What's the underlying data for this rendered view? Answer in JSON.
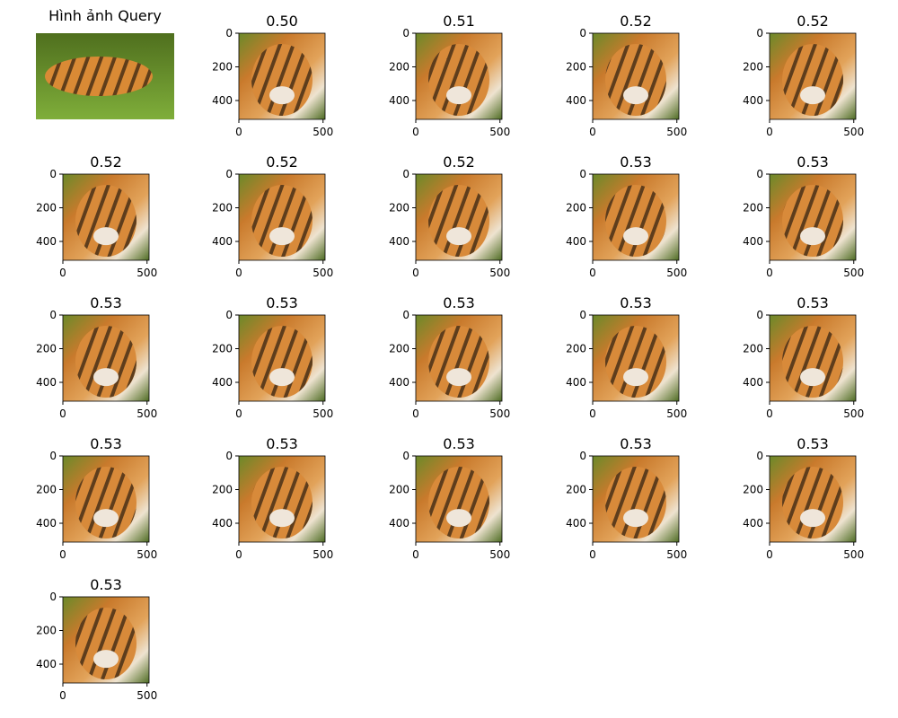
{
  "query": {
    "title": "Hình ảnh Query"
  },
  "axes": {
    "xlim": [
      0,
      512
    ],
    "ylim": [
      512,
      0
    ],
    "xticks": [
      0,
      500
    ],
    "yticks": [
      0,
      200,
      400
    ]
  },
  "results": [
    {
      "title": "0.50"
    },
    {
      "title": "0.51"
    },
    {
      "title": "0.52"
    },
    {
      "title": "0.52"
    },
    {
      "title": "0.52"
    },
    {
      "title": "0.52"
    },
    {
      "title": "0.52"
    },
    {
      "title": "0.53"
    },
    {
      "title": "0.53"
    },
    {
      "title": "0.53"
    },
    {
      "title": "0.53"
    },
    {
      "title": "0.53"
    },
    {
      "title": "0.53"
    },
    {
      "title": "0.53"
    },
    {
      "title": "0.53"
    },
    {
      "title": "0.53"
    },
    {
      "title": "0.53"
    },
    {
      "title": "0.53"
    },
    {
      "title": "0.53"
    },
    {
      "title": "0.53"
    }
  ]
}
